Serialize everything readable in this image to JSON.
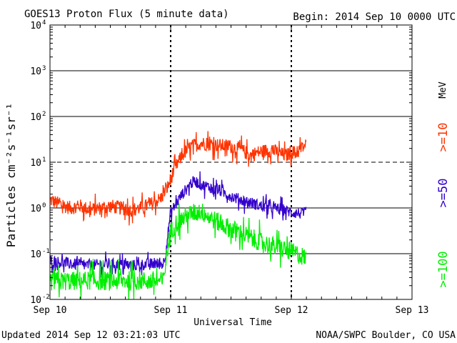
{
  "chart_data": {
    "type": "line",
    "title": "GOES13 Proton Flux (5 minute data)",
    "begin_label": "Begin: 2014 Sep 10 0000 UTC",
    "xlabel": "Universal Time",
    "ylabel": "Particles cm⁻²s⁻¹sr⁻¹",
    "units": "MeV",
    "footer_left": "Updated 2014 Sep 12 03:21:03 UTC",
    "footer_right": "NOAA/SWPC Boulder, CO USA",
    "x_range_hours": [
      0,
      72
    ],
    "y_scale": "log",
    "ylim": [
      0.01,
      10000
    ],
    "y_ticks": [
      {
        "value": 0.01,
        "base": "10",
        "exp": "-2"
      },
      {
        "value": 0.1,
        "base": "10",
        "exp": "-1"
      },
      {
        "value": 1,
        "base": "10",
        "exp": "0"
      },
      {
        "value": 10,
        "base": "10",
        "exp": "1"
      },
      {
        "value": 100,
        "base": "10",
        "exp": "2"
      },
      {
        "value": 1000,
        "base": "10",
        "exp": "3"
      },
      {
        "value": 10000,
        "base": "10",
        "exp": "4"
      }
    ],
    "x_ticks": [
      {
        "hour": 0,
        "label": "Sep 10"
      },
      {
        "hour": 24,
        "label": "Sep 11"
      },
      {
        "hour": 48,
        "label": "Sep 12"
      },
      {
        "hour": 72,
        "label": "Sep 13"
      }
    ],
    "thresholds": [
      {
        "value": 10,
        "style": "dashed"
      },
      {
        "value": 0.1,
        "style": "solid"
      }
    ],
    "series": [
      {
        "name": ">=10",
        "color": "#ff3300",
        "noise": 0.22,
        "points": [
          [
            0,
            1.5
          ],
          [
            2,
            1.2
          ],
          [
            4,
            1.0
          ],
          [
            6,
            1.1
          ],
          [
            8,
            0.9
          ],
          [
            10,
            1.0
          ],
          [
            12,
            1.1
          ],
          [
            14,
            1.0
          ],
          [
            16,
            0.9
          ],
          [
            18,
            1.0
          ],
          [
            20,
            1.2
          ],
          [
            22,
            1.6
          ],
          [
            23.5,
            3.0
          ],
          [
            24.5,
            6.0
          ],
          [
            25.5,
            10
          ],
          [
            26.5,
            15
          ],
          [
            28,
            22
          ],
          [
            30,
            26
          ],
          [
            32,
            25
          ],
          [
            34,
            23
          ],
          [
            36,
            22
          ],
          [
            37,
            20
          ],
          [
            38,
            19
          ],
          [
            39,
            16
          ],
          [
            40,
            14
          ],
          [
            41,
            16
          ],
          [
            42,
            17
          ],
          [
            43,
            18
          ],
          [
            44,
            18
          ],
          [
            45,
            17
          ],
          [
            46,
            15
          ],
          [
            47,
            14
          ],
          [
            48,
            17
          ],
          [
            49,
            16
          ],
          [
            50,
            20
          ],
          [
            51,
            25
          ]
        ]
      },
      {
        "name": ">=50",
        "color": "#3300cc",
        "noise": 0.18,
        "points": [
          [
            0,
            0.07
          ],
          [
            4,
            0.06
          ],
          [
            8,
            0.055
          ],
          [
            12,
            0.06
          ],
          [
            16,
            0.055
          ],
          [
            20,
            0.06
          ],
          [
            22.5,
            0.06
          ],
          [
            23,
            0.1
          ],
          [
            23.5,
            0.3
          ],
          [
            24,
            0.8
          ],
          [
            25,
            1.2
          ],
          [
            26,
            1.8
          ],
          [
            27,
            2.5
          ],
          [
            28,
            3.5
          ],
          [
            29,
            3.8
          ],
          [
            30,
            3.2
          ],
          [
            32,
            2.8
          ],
          [
            34,
            2.3
          ],
          [
            36,
            1.8
          ],
          [
            38,
            1.5
          ],
          [
            40,
            1.3
          ],
          [
            42,
            1.1
          ],
          [
            44,
            1.0
          ],
          [
            46,
            0.95
          ],
          [
            48,
            0.8
          ],
          [
            50,
            0.75
          ],
          [
            51,
            0.8
          ]
        ]
      },
      {
        "name": ">=100",
        "color": "#00ee00",
        "noise": 0.3,
        "points": [
          [
            0,
            0.025
          ],
          [
            4,
            0.025
          ],
          [
            8,
            0.026
          ],
          [
            12,
            0.025
          ],
          [
            16,
            0.026
          ],
          [
            20,
            0.025
          ],
          [
            22.5,
            0.025
          ],
          [
            23,
            0.06
          ],
          [
            23.5,
            0.15
          ],
          [
            24,
            0.3
          ],
          [
            25,
            0.45
          ],
          [
            26,
            0.55
          ],
          [
            28,
            0.75
          ],
          [
            30,
            0.85
          ],
          [
            32,
            0.6
          ],
          [
            34,
            0.45
          ],
          [
            36,
            0.35
          ],
          [
            38,
            0.28
          ],
          [
            40,
            0.22
          ],
          [
            42,
            0.18
          ],
          [
            44,
            0.15
          ],
          [
            46,
            0.13
          ],
          [
            48,
            0.11
          ],
          [
            50,
            0.09
          ],
          [
            51,
            0.08
          ]
        ]
      }
    ]
  }
}
